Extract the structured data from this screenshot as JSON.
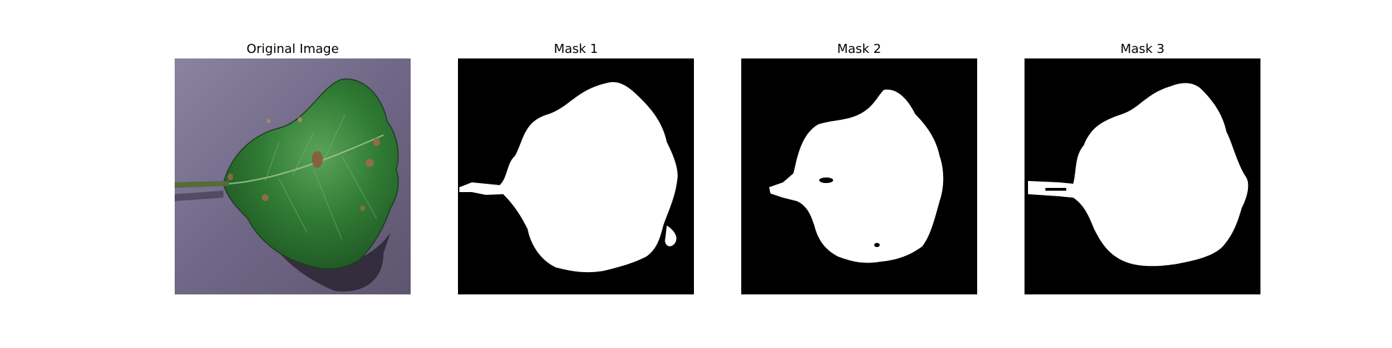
{
  "panels": [
    {
      "title": "Original Image"
    },
    {
      "title": "Mask 1"
    },
    {
      "title": "Mask 2"
    },
    {
      "title": "Mask 3"
    }
  ],
  "colors": {
    "background": "#ffffff",
    "mask_background": "#000000",
    "mask_foreground": "#ffffff",
    "leaf_green": "#2f7a33",
    "backdrop_purple": "#6e6680"
  }
}
